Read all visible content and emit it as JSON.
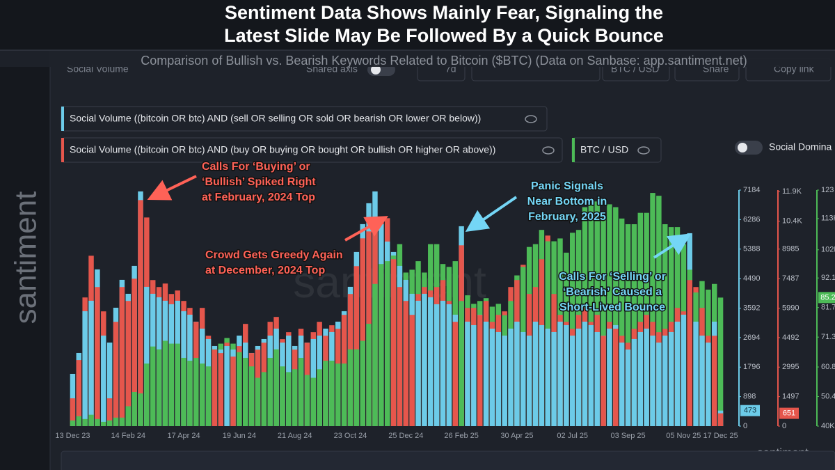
{
  "chart_data": {
    "type": "bar",
    "title": [
      "Sentiment Data Shows Mainly Fear, Signaling the",
      "Latest Slide May Be Followed By a Quick Bounce"
    ],
    "subtitle": "Comparison of Bullish vs. Bearish Keywords Related to Bitcoin ($BTC) (Data on Sanbase: app.santiment.net)",
    "categories": [
      "13 Dec 23",
      null,
      null,
      null,
      null,
      null,
      null,
      null,
      null,
      "14 Feb 24",
      null,
      null,
      null,
      null,
      null,
      null,
      null,
      null,
      "17 Apr 24",
      null,
      null,
      null,
      null,
      null,
      null,
      null,
      null,
      "19 Jun 24",
      null,
      null,
      null,
      null,
      null,
      null,
      null,
      null,
      "21 Aug 24",
      null,
      null,
      null,
      null,
      null,
      null,
      null,
      null,
      "23 Oct 24",
      null,
      null,
      null,
      null,
      null,
      null,
      null,
      null,
      "25 Dec 24",
      null,
      null,
      null,
      null,
      null,
      null,
      null,
      null,
      "26 Feb 25",
      null,
      null,
      null,
      null,
      null,
      null,
      null,
      null,
      "30 Apr 25",
      null,
      null,
      null,
      null,
      null,
      null,
      null,
      null,
      "02 Jul 25",
      null,
      null,
      null,
      null,
      null,
      null,
      null,
      null,
      "03 Sep 25",
      null,
      null,
      null,
      null,
      null,
      null,
      null,
      null,
      "05 Nov 25",
      null,
      null,
      null,
      null,
      null,
      "17 Dec 25"
    ],
    "series": [
      {
        "name": "Social Volume ((bitcoin OR btc) AND (sell OR selling OR sold OR bearish OR lower OR below))",
        "color": "#6ccbe8",
        "axis": "y",
        "last_label": "473",
        "values": [
          1590,
          2226,
          3498,
          3816,
          4770,
          2756,
          2544,
          3604,
          4452,
          4028,
          4876,
          7144,
          4240,
          4028,
          3922,
          3816,
          3710,
          3816,
          3498,
          3392,
          3180,
          2968,
          2650,
          2438,
          2332,
          2438,
          2332,
          2756,
          2544,
          2226,
          2438,
          2650,
          2756,
          2968,
          2544,
          2756,
          2438,
          2756,
          2544,
          2650,
          2756,
          2968,
          2862,
          3180,
          3498,
          4240,
          5300,
          6148,
          6784,
          7144,
          6148,
          5618,
          5300,
          4876,
          4452,
          4028,
          3816,
          4028,
          3922,
          3710,
          3816,
          3710,
          3392,
          6084,
          3180,
          3074,
          3392,
          3180,
          2968,
          2862,
          2756,
          2968,
          3180,
          2862,
          2756,
          3180,
          3074,
          2968,
          2862,
          3180,
          3074,
          2756,
          2968,
          3180,
          3074,
          2862,
          2756,
          2968,
          3074,
          2544,
          2332,
          2650,
          2862,
          2968,
          2756,
          2544,
          2756,
          2862,
          3180,
          3392,
          5872,
          3180,
          2756,
          2544,
          3180,
          473
        ]
      },
      {
        "name": "Social Volume ((bitcoin OR btc) AND (buy OR buying OR bought OR bullish OR higher OR above))",
        "color": "#e5564c",
        "axis": "y2",
        "last_label": "651",
        "values": [
          1412,
          3354,
          6531,
          8649,
          7060,
          5825,
          1412,
          5295,
          7060,
          6354,
          7484,
          11473,
          10590,
          7413,
          7060,
          7237,
          6707,
          6884,
          6354,
          6001,
          5295,
          6001,
          4589,
          3883,
          3707,
          4236,
          3530,
          4060,
          5189,
          3707,
          3883,
          4236,
          5295,
          5542,
          4413,
          4766,
          3883,
          4942,
          4236,
          4766,
          5295,
          4589,
          5119,
          4942,
          5648,
          6707,
          8119,
          9531,
          9884,
          10237,
          10590,
          10555,
          8472,
          7060,
          6354,
          5648,
          6707,
          7060,
          6884,
          7060,
          7413,
          6354,
          5295,
          9178,
          6001,
          6001,
          5648,
          6354,
          5295,
          5648,
          5825,
          7060,
          7413,
          8190,
          6707,
          7060,
          8472,
          9672,
          6707,
          5648,
          5295,
          4942,
          5648,
          6001,
          5295,
          5648,
          4589,
          5295,
          4942,
          4589,
          4236,
          4942,
          5295,
          5648,
          5295,
          4766,
          4942,
          5295,
          6001,
          5825,
          7413,
          7060,
          6001,
          4589,
          4589,
          651
        ]
      },
      {
        "name": "BTC / USD",
        "color": "#4dbb57",
        "axis": "y3",
        "last_label": "85.2",
        "values": [
          42000,
          43500,
          42500,
          44000,
          42500,
          41500,
          42000,
          43000,
          43000,
          47000,
          52000,
          51500,
          62000,
          68000,
          67000,
          70000,
          69000,
          69000,
          64000,
          63000,
          64000,
          62000,
          61000,
          67000,
          69000,
          71000,
          69000,
          66000,
          64000,
          61000,
          57000,
          59000,
          64000,
          67000,
          61000,
          59000,
          60000,
          64000,
          58000,
          57000,
          60000,
          63000,
          63000,
          62000,
          62000,
          67000,
          67000,
          70000,
          76000,
          90000,
          97000,
          98000,
          100000,
          104000,
          94000,
          95000,
          98000,
          94000,
          104000,
          104000,
          97000,
          96000,
          98000,
          84000,
          86000,
          83000,
          84000,
          85000,
          82000,
          83000,
          79000,
          84000,
          93000,
          96000,
          103000,
          104000,
          109000,
          105000,
          105000,
          106000,
          101000,
          108000,
          109000,
          117000,
          119000,
          119000,
          114000,
          118000,
          117000,
          113000,
          111000,
          111000,
          115000,
          115000,
          122000,
          121000,
          111000,
          110000,
          110000,
          104000,
          95000,
          87000,
          91000,
          88000,
          90000,
          85200
        ]
      }
    ],
    "ylim": [
      0,
      7184
    ],
    "yticks": [
      0,
      898,
      1796,
      2694,
      3592,
      4490,
      5388,
      6286,
      7184
    ],
    "y2lim": [
      0,
      11980
    ],
    "y2ticks": [
      0,
      1497,
      2995,
      4492,
      5990,
      7487,
      8985,
      {
        "value": 10400,
        "label": "10.4K"
      },
      {
        "value": 11900,
        "label": "11.9K"
      }
    ],
    "y3lim": [
      40000,
      123000
    ],
    "y3ticks": [
      {
        "value": 40000,
        "label": "40K"
      },
      {
        "value": 50400,
        "label": "50.4"
      },
      {
        "value": 60800,
        "label": "60.8"
      },
      {
        "value": 71300,
        "label": "71.3"
      },
      {
        "value": 81700,
        "label": "81.7"
      },
      {
        "value": 92100,
        "label": "92.1"
      },
      {
        "value": 102000,
        "label": "102K"
      },
      {
        "value": 113000,
        "label": "113K"
      },
      {
        "value": 123000,
        "label": "123"
      }
    ],
    "annotations": [
      {
        "lines": [
          "Calls For ‘Buying’ or",
          "‘Bullish’ Spiked Right",
          "at February, 2024 Top"
        ],
        "color": "#ff6257"
      },
      {
        "lines": [
          "Crowd Gets Greedy Again",
          "at December, 2024 Top"
        ],
        "color": "#ff6257"
      },
      {
        "lines": [
          "Panic Signals",
          "Near Bottom in",
          "February, 2025"
        ],
        "color": "#74d6f6"
      },
      {
        "lines": [
          "Calls For ‘Selling’ or",
          "‘Bearish’ Caused a",
          "Short-Lived Bounce"
        ],
        "color": "#74d6f6"
      }
    ]
  },
  "ui": {
    "panel_title": "Social Volume",
    "shared_axis": "Shared axis",
    "interval": "7d",
    "pair": "BTC / USD",
    "share": "Share",
    "copy_link": "Copy link",
    "toggle": "Social Domina",
    "watermark": "santiment"
  }
}
